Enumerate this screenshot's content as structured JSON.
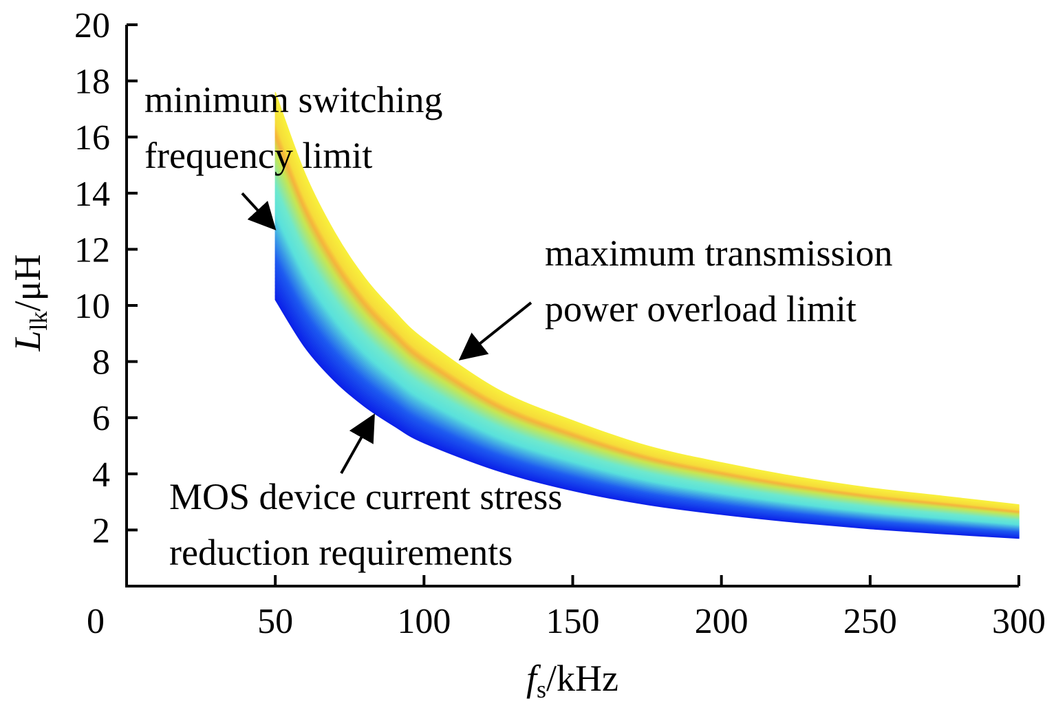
{
  "chart_data": {
    "type": "area",
    "title": "",
    "xlabel": {
      "main": "f",
      "sub": "s",
      "unit": "/kHz"
    },
    "ylabel": {
      "main": "L",
      "sub": "lk",
      "unit": "/μH"
    },
    "xlim": [
      0,
      300
    ],
    "ylim": [
      0,
      20
    ],
    "x_ticks": [
      "0",
      "50",
      "100",
      "150",
      "200",
      "250",
      "300"
    ],
    "y_ticks": [
      "2",
      "4",
      "6",
      "8",
      "10",
      "12",
      "14",
      "16",
      "18",
      "20"
    ],
    "grid": false,
    "band": {
      "description_colormap": "blue (lower) to cyan to yellow/orange (upper)",
      "x_start": 50,
      "x_end": 300,
      "upper_boundary": [
        {
          "x": 50,
          "y": 17.6
        },
        {
          "x": 60,
          "y": 14.7
        },
        {
          "x": 70,
          "y": 12.6
        },
        {
          "x": 80,
          "y": 11.0
        },
        {
          "x": 90,
          "y": 9.8
        },
        {
          "x": 100,
          "y": 8.8
        },
        {
          "x": 125,
          "y": 7.0
        },
        {
          "x": 150,
          "y": 5.9
        },
        {
          "x": 175,
          "y": 5.0
        },
        {
          "x": 200,
          "y": 4.4
        },
        {
          "x": 225,
          "y": 3.9
        },
        {
          "x": 250,
          "y": 3.5
        },
        {
          "x": 275,
          "y": 3.2
        },
        {
          "x": 300,
          "y": 2.9
        }
      ],
      "lower_boundary": [
        {
          "x": 50,
          "y": 10.2
        },
        {
          "x": 60,
          "y": 8.5
        },
        {
          "x": 70,
          "y": 7.3
        },
        {
          "x": 80,
          "y": 6.4
        },
        {
          "x": 90,
          "y": 5.7
        },
        {
          "x": 100,
          "y": 5.1
        },
        {
          "x": 125,
          "y": 4.1
        },
        {
          "x": 150,
          "y": 3.4
        },
        {
          "x": 175,
          "y": 2.9
        },
        {
          "x": 200,
          "y": 2.55
        },
        {
          "x": 225,
          "y": 2.27
        },
        {
          "x": 250,
          "y": 2.04
        },
        {
          "x": 275,
          "y": 1.86
        },
        {
          "x": 300,
          "y": 1.7
        }
      ]
    },
    "annotations": [
      {
        "lines": [
          "minimum switching",
          "frequency limit"
        ],
        "arrow_to": {
          "x": 50,
          "y": 12.7
        }
      },
      {
        "lines": [
          "maximum transmission",
          "power overload limit"
        ],
        "arrow_to": {
          "x": 112,
          "y": 8.0
        }
      },
      {
        "lines": [
          "MOS device current stress",
          "reduction requirements"
        ],
        "arrow_to": {
          "x": 84,
          "y": 6.1
        }
      }
    ],
    "colors": {
      "axis": "#000000",
      "band_low": "#0a1ee8",
      "band_mid": "#5de8d6",
      "band_high": "#f5ef3a",
      "band_ridge": "#f6b23c"
    }
  }
}
